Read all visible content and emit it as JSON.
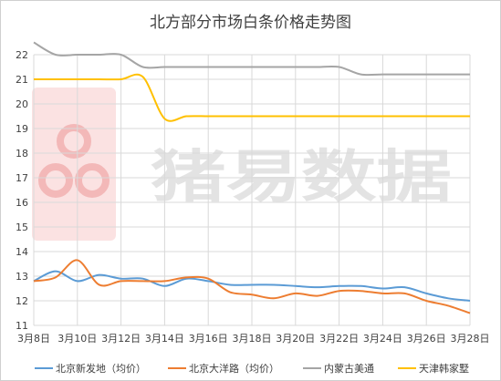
{
  "chart_data": {
    "type": "line",
    "title": "北方部分市场白条价格走势图",
    "x": [
      "3月8日",
      "3月9日",
      "3月10日",
      "3月11日",
      "3月12日",
      "3月13日",
      "3月14日",
      "3月15日",
      "3月16日",
      "3月17日",
      "3月18日",
      "3月19日",
      "3月20日",
      "3月21日",
      "3月22日",
      "3月23日",
      "3月24日",
      "3月25日",
      "3月26日",
      "3月27日",
      "3月28日"
    ],
    "xticks": [
      "3月8日",
      "3月10日",
      "3月12日",
      "3月14日",
      "3月16日",
      "3月18日",
      "3月20日",
      "3月22日",
      "3月24日",
      "3月26日",
      "3月28日"
    ],
    "ylim": [
      11,
      22
    ],
    "yticks": [
      11,
      12,
      13,
      14,
      15,
      16,
      17,
      18,
      19,
      20,
      21,
      22
    ],
    "grid": true,
    "legend": "bottom",
    "series": [
      {
        "name": "北京新发地（均价）",
        "color": "#5b9bd5",
        "values": [
          12.8,
          13.2,
          12.8,
          13.05,
          12.9,
          12.9,
          12.6,
          12.9,
          12.8,
          12.65,
          12.65,
          12.65,
          12.6,
          12.55,
          12.6,
          12.6,
          12.5,
          12.55,
          12.3,
          12.1,
          12.0
        ]
      },
      {
        "name": "北京大洋路（均价）",
        "color": "#ed7d31",
        "values": [
          12.8,
          12.95,
          13.65,
          12.65,
          12.8,
          12.8,
          12.8,
          12.95,
          12.9,
          12.35,
          12.25,
          12.1,
          12.3,
          12.2,
          12.4,
          12.4,
          12.3,
          12.3,
          12.0,
          11.8,
          11.5
        ]
      },
      {
        "name": "内蒙古美通",
        "color": "#a5a5a5",
        "values": [
          22.5,
          22.0,
          22.0,
          22.0,
          22.0,
          21.5,
          21.5,
          21.5,
          21.5,
          21.5,
          21.5,
          21.5,
          21.5,
          21.5,
          21.5,
          21.2,
          21.2,
          21.2,
          21.2,
          21.2,
          21.2
        ]
      },
      {
        "name": "天津韩家墅",
        "color": "#ffc000",
        "values": [
          21.0,
          21.0,
          21.0,
          21.0,
          21.0,
          21.1,
          19.4,
          19.5,
          19.5,
          19.5,
          19.5,
          19.5,
          19.5,
          19.5,
          19.5,
          19.5,
          19.5,
          19.5,
          19.5,
          19.5,
          19.5
        ]
      }
    ]
  },
  "watermark": {
    "text": "猪易数据"
  }
}
